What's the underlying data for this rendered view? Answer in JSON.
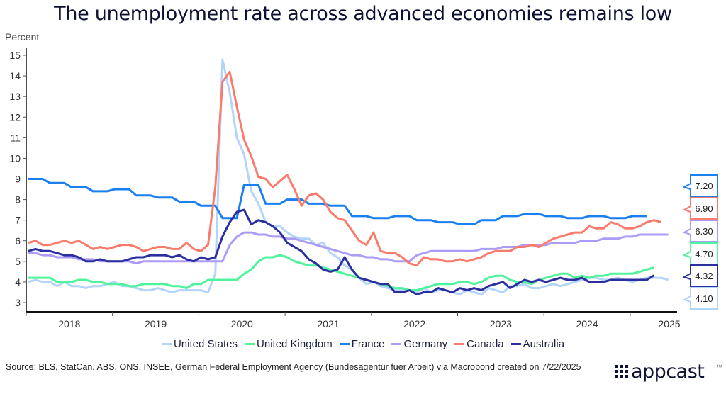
{
  "chart_data": {
    "type": "line",
    "title": "The unemployment rate across advanced economies remains low",
    "ylabel": "Percent",
    "xlabel": "",
    "ylim": [
      3,
      15
    ],
    "yticks": [
      "3",
      "4",
      "5",
      "6",
      "7",
      "8",
      "9",
      "10",
      "11",
      "12",
      "13",
      "14",
      "15"
    ],
    "xticks": [
      "2018",
      "2019",
      "2020",
      "2021",
      "2022",
      "2023",
      "2024",
      "2025"
    ],
    "x_start": "2018-01",
    "frequency": "monthly",
    "grid": false,
    "legend_position": "bottom",
    "series": [
      {
        "name": "United States",
        "color": "#b3d4fb",
        "end_label": "4.10",
        "values": [
          4.0,
          4.1,
          4.0,
          4.0,
          3.8,
          4.0,
          3.8,
          3.8,
          3.7,
          3.8,
          3.8,
          3.9,
          4.0,
          3.8,
          3.8,
          3.7,
          3.6,
          3.6,
          3.7,
          3.6,
          3.5,
          3.6,
          3.6,
          3.6,
          3.6,
          3.5,
          4.4,
          14.8,
          13.2,
          11.0,
          10.2,
          8.4,
          7.8,
          6.9,
          6.7,
          6.7,
          6.4,
          6.2,
          6.1,
          6.1,
          5.8,
          5.9,
          5.4,
          5.2,
          4.8,
          4.6,
          4.2,
          3.9,
          4.0,
          3.8,
          3.7,
          3.6,
          3.6,
          3.6,
          3.5,
          3.7,
          3.5,
          3.6,
          3.6,
          3.5,
          3.4,
          3.6,
          3.5,
          3.4,
          3.7,
          3.6,
          3.5,
          3.8,
          3.8,
          3.9,
          3.7,
          3.7,
          3.8,
          3.9,
          3.8,
          3.9,
          4.0,
          4.1,
          4.2,
          4.2,
          4.1,
          4.1,
          4.2,
          4.1,
          4.0,
          4.1,
          4.2,
          4.2,
          4.2,
          4.1
        ],
        "end_index": 90
      },
      {
        "name": "United Kingdom",
        "color": "#4ef39a",
        "end_label": "4.70",
        "values": [
          4.2,
          4.2,
          4.2,
          4.2,
          4.0,
          4.0,
          4.0,
          4.1,
          4.1,
          4.0,
          4.0,
          3.9,
          3.9,
          3.9,
          3.8,
          3.8,
          3.9,
          3.9,
          3.9,
          3.9,
          3.8,
          3.8,
          3.7,
          3.9,
          3.9,
          4.1,
          4.1,
          4.1,
          4.1,
          4.1,
          4.4,
          4.6,
          5.0,
          5.2,
          5.2,
          5.3,
          5.2,
          5.0,
          4.9,
          4.8,
          4.8,
          4.7,
          4.6,
          4.5,
          4.4,
          4.3,
          4.2,
          4.1,
          4.0,
          3.9,
          3.8,
          3.7,
          3.7,
          3.6,
          3.6,
          3.7,
          3.8,
          3.9,
          3.9,
          3.9,
          4.0,
          4.0,
          3.9,
          4.0,
          4.2,
          4.3,
          4.3,
          4.1,
          4.0,
          4.0,
          3.9,
          4.1,
          4.2,
          4.3,
          4.4,
          4.4,
          4.2,
          4.3,
          4.2,
          4.3,
          4.3,
          4.4,
          4.4,
          4.4,
          4.4,
          4.5,
          4.6,
          4.7
        ],
        "end_index": 87
      },
      {
        "name": "France",
        "color": "#1a7ff0",
        "end_label": "7.20",
        "values": [
          9.0,
          9.0,
          9.0,
          8.8,
          8.8,
          8.8,
          8.6,
          8.6,
          8.6,
          8.4,
          8.4,
          8.4,
          8.5,
          8.5,
          8.5,
          8.2,
          8.2,
          8.2,
          8.1,
          8.1,
          8.1,
          7.9,
          7.9,
          7.9,
          7.7,
          7.7,
          7.7,
          7.1,
          7.1,
          7.1,
          8.7,
          8.7,
          8.7,
          7.8,
          7.8,
          7.8,
          8.0,
          8.0,
          8.0,
          7.8,
          7.8,
          7.8,
          7.7,
          7.7,
          7.7,
          7.2,
          7.2,
          7.2,
          7.1,
          7.1,
          7.1,
          7.2,
          7.2,
          7.2,
          7.0,
          7.0,
          7.0,
          6.9,
          6.9,
          6.9,
          6.8,
          6.8,
          6.8,
          7.0,
          7.0,
          7.0,
          7.2,
          7.2,
          7.2,
          7.3,
          7.3,
          7.3,
          7.2,
          7.2,
          7.2,
          7.1,
          7.1,
          7.1,
          7.2,
          7.2,
          7.2,
          7.1,
          7.1,
          7.1,
          7.2,
          7.2,
          7.2
        ],
        "end_index": 86
      },
      {
        "name": "Germany",
        "color": "#ad9cf7",
        "end_label": "6.30",
        "values": [
          5.4,
          5.4,
          5.3,
          5.3,
          5.2,
          5.2,
          5.2,
          5.1,
          5.1,
          5.1,
          5.0,
          5.0,
          5.0,
          5.0,
          5.0,
          4.9,
          5.0,
          5.0,
          5.0,
          5.0,
          5.0,
          5.0,
          5.0,
          5.0,
          5.0,
          5.0,
          5.0,
          5.0,
          5.8,
          6.2,
          6.4,
          6.4,
          6.3,
          6.3,
          6.2,
          6.2,
          6.1,
          6.1,
          6.0,
          5.9,
          5.8,
          5.7,
          5.6,
          5.5,
          5.4,
          5.3,
          5.3,
          5.2,
          5.2,
          5.1,
          5.1,
          5.0,
          5.0,
          5.0,
          5.3,
          5.4,
          5.5,
          5.5,
          5.5,
          5.5,
          5.5,
          5.5,
          5.5,
          5.6,
          5.6,
          5.6,
          5.7,
          5.7,
          5.7,
          5.8,
          5.8,
          5.8,
          5.8,
          5.9,
          5.9,
          5.9,
          5.9,
          6.0,
          6.0,
          6.0,
          6.1,
          6.1,
          6.1,
          6.2,
          6.2,
          6.3,
          6.3,
          6.3,
          6.3,
          6.3
        ],
        "end_index": 89
      },
      {
        "name": "Canada",
        "color": "#fa7a6b",
        "end_label": "6.90",
        "values": [
          5.9,
          6.0,
          5.8,
          5.8,
          5.9,
          6.0,
          5.9,
          6.0,
          5.8,
          5.6,
          5.7,
          5.6,
          5.7,
          5.8,
          5.8,
          5.7,
          5.5,
          5.6,
          5.7,
          5.7,
          5.6,
          5.6,
          5.9,
          5.6,
          5.5,
          5.8,
          8.6,
          13.7,
          14.2,
          12.5,
          10.9,
          10.1,
          9.1,
          9.0,
          8.6,
          8.9,
          9.2,
          8.5,
          7.7,
          8.2,
          8.3,
          8.0,
          7.4,
          7.1,
          7.0,
          6.5,
          6.0,
          5.8,
          6.4,
          5.5,
          5.4,
          5.4,
          5.2,
          4.9,
          4.8,
          5.2,
          5.1,
          5.1,
          5.0,
          5.0,
          5.1,
          5.0,
          5.1,
          5.2,
          5.4,
          5.5,
          5.5,
          5.5,
          5.7,
          5.7,
          5.8,
          5.7,
          5.9,
          6.1,
          6.2,
          6.3,
          6.4,
          6.4,
          6.7,
          6.6,
          6.6,
          6.9,
          6.8,
          6.6,
          6.6,
          6.7,
          6.9,
          7.0,
          6.9
        ],
        "end_index": 89
      },
      {
        "name": "Australia",
        "color": "#2b2fa0",
        "end_label": "4.32",
        "values": [
          5.5,
          5.6,
          5.5,
          5.5,
          5.4,
          5.3,
          5.3,
          5.2,
          5.0,
          5.0,
          5.1,
          5.0,
          5.0,
          5.0,
          5.1,
          5.2,
          5.2,
          5.3,
          5.3,
          5.3,
          5.2,
          5.3,
          5.1,
          5.0,
          5.2,
          5.1,
          5.2,
          6.2,
          6.9,
          7.4,
          7.5,
          6.8,
          7.0,
          6.9,
          6.7,
          6.4,
          5.9,
          5.7,
          5.5,
          5.1,
          4.9,
          4.6,
          4.5,
          4.6,
          5.2,
          4.6,
          4.2,
          4.1,
          4.0,
          3.9,
          3.9,
          3.5,
          3.5,
          3.6,
          3.4,
          3.5,
          3.5,
          3.7,
          3.6,
          3.5,
          3.7,
          3.6,
          3.7,
          3.6,
          3.8,
          3.9,
          4.0,
          3.7,
          3.9,
          4.1,
          4.0,
          4.1,
          4.0,
          4.1,
          4.2,
          4.1,
          4.1,
          4.2,
          4.0,
          4.0,
          4.0,
          4.1,
          4.1,
          4.1,
          4.1,
          4.1,
          4.1,
          4.32
        ],
        "end_index": 90
      }
    ]
  },
  "legend_items": [
    "United States",
    "United Kingdom",
    "France",
    "Germany",
    "Canada",
    "Australia"
  ],
  "source_text": "Source: BLS, StatCan, ABS, ONS, INSEE, German Federal Employment Agency (Bundesagentur fuer Arbeit) via Macrobond created on 7/22/2025",
  "logo": {
    "text": "appcast",
    "trademark": "™"
  }
}
